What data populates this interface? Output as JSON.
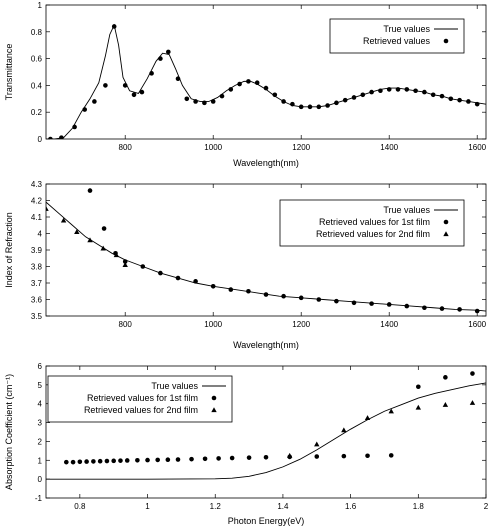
{
  "chart_data": [
    {
      "type": "line",
      "xlabel": "Wavelength(nm)",
      "ylabel": "Transmittance",
      "xlim": [
        620,
        1620
      ],
      "ylim": [
        0,
        1
      ],
      "xticks": [
        800,
        1000,
        1200,
        1400,
        1600
      ],
      "xtick_labels": [
        "800",
        "1000",
        "1200",
        "1400",
        "1600"
      ],
      "yticks": [
        0,
        0.2,
        0.4,
        0.6,
        0.8,
        1
      ],
      "ytick_labels": [
        "0",
        "0.2",
        "0.4",
        "0.6",
        "0.8",
        "1"
      ],
      "legend_position": "top-right",
      "series": [
        {
          "name": "True values",
          "style": "line",
          "x": [
            620,
            640,
            660,
            680,
            700,
            720,
            740,
            755,
            765,
            775,
            785,
            795,
            810,
            830,
            850,
            870,
            885,
            900,
            915,
            930,
            950,
            970,
            990,
            1010,
            1030,
            1050,
            1070,
            1085,
            1100,
            1120,
            1140,
            1160,
            1180,
            1200,
            1220,
            1240,
            1260,
            1280,
            1300,
            1320,
            1340,
            1360,
            1380,
            1400,
            1420,
            1440,
            1460,
            1480,
            1500,
            1520,
            1540,
            1560,
            1580,
            1600,
            1620
          ],
          "y": [
            0,
            0.0,
            0.01,
            0.08,
            0.2,
            0.3,
            0.42,
            0.62,
            0.78,
            0.85,
            0.7,
            0.46,
            0.36,
            0.34,
            0.45,
            0.58,
            0.64,
            0.63,
            0.52,
            0.4,
            0.3,
            0.28,
            0.28,
            0.31,
            0.36,
            0.4,
            0.43,
            0.43,
            0.41,
            0.37,
            0.32,
            0.28,
            0.25,
            0.24,
            0.24,
            0.24,
            0.25,
            0.27,
            0.29,
            0.31,
            0.33,
            0.35,
            0.37,
            0.38,
            0.38,
            0.37,
            0.36,
            0.35,
            0.33,
            0.32,
            0.3,
            0.29,
            0.28,
            0.27,
            0.26
          ]
        },
        {
          "name": "Retrieved values",
          "style": "circle",
          "x": [
            630,
            655,
            685,
            708,
            730,
            755,
            775,
            800,
            820,
            838,
            860,
            880,
            898,
            920,
            940,
            960,
            980,
            1000,
            1020,
            1040,
            1060,
            1080,
            1100,
            1120,
            1140,
            1160,
            1180,
            1200,
            1220,
            1240,
            1260,
            1280,
            1300,
            1320,
            1340,
            1360,
            1380,
            1400,
            1420,
            1440,
            1460,
            1480,
            1500,
            1520,
            1540,
            1560,
            1580,
            1600
          ],
          "y": [
            0.0,
            0.01,
            0.09,
            0.22,
            0.28,
            0.4,
            0.84,
            0.4,
            0.33,
            0.35,
            0.49,
            0.6,
            0.65,
            0.45,
            0.3,
            0.28,
            0.27,
            0.28,
            0.32,
            0.37,
            0.41,
            0.43,
            0.42,
            0.38,
            0.33,
            0.28,
            0.26,
            0.24,
            0.24,
            0.24,
            0.25,
            0.27,
            0.29,
            0.31,
            0.33,
            0.35,
            0.36,
            0.37,
            0.37,
            0.37,
            0.36,
            0.35,
            0.33,
            0.32,
            0.3,
            0.29,
            0.28,
            0.26
          ]
        }
      ]
    },
    {
      "type": "line",
      "xlabel": "Wavelength(nm)",
      "ylabel": "Index of Refraction",
      "xlim": [
        620,
        1620
      ],
      "ylim": [
        3.5,
        4.3
      ],
      "xticks": [
        800,
        1000,
        1200,
        1400,
        1600
      ],
      "xtick_labels": [
        "800",
        "1000",
        "1200",
        "1400",
        "1600"
      ],
      "yticks": [
        3.5,
        3.6,
        3.7,
        3.8,
        3.9,
        4,
        4.1,
        4.2,
        4.3
      ],
      "ytick_labels": [
        "3.5",
        "3.6",
        "3.7",
        "3.8",
        "3.9",
        "4",
        "4.1",
        "4.2",
        "4.3"
      ],
      "legend_position": "top-right",
      "series": [
        {
          "name": "True values",
          "style": "line",
          "x": [
            620,
            650,
            680,
            710,
            740,
            770,
            800,
            840,
            880,
            920,
            960,
            1000,
            1050,
            1100,
            1150,
            1200,
            1250,
            1300,
            1350,
            1400,
            1450,
            1500,
            1550,
            1600,
            1620
          ],
          "y": [
            4.19,
            4.12,
            4.05,
            3.98,
            3.93,
            3.88,
            3.84,
            3.8,
            3.76,
            3.73,
            3.7,
            3.68,
            3.66,
            3.64,
            3.62,
            3.61,
            3.6,
            3.59,
            3.58,
            3.57,
            3.56,
            3.55,
            3.54,
            3.535,
            3.53
          ]
        },
        {
          "name": "Retrieved values for 1st film",
          "style": "circle",
          "x": [
            720,
            752,
            778,
            800,
            840,
            880,
            920,
            960,
            1000,
            1040,
            1080,
            1120,
            1160,
            1200,
            1240,
            1280,
            1320,
            1360,
            1400,
            1440,
            1480,
            1520,
            1560,
            1600
          ],
          "y": [
            4.26,
            4.03,
            3.88,
            3.83,
            3.8,
            3.76,
            3.73,
            3.71,
            3.68,
            3.66,
            3.65,
            3.63,
            3.62,
            3.61,
            3.6,
            3.59,
            3.58,
            3.575,
            3.57,
            3.56,
            3.55,
            3.545,
            3.54,
            3.53
          ]
        },
        {
          "name": "Retrieved values for 2nd film",
          "style": "triangle",
          "x": [
            620,
            660,
            690,
            720,
            750,
            780,
            800
          ],
          "y": [
            4.15,
            4.08,
            4.01,
            3.96,
            3.91,
            3.87,
            3.81
          ]
        }
      ]
    },
    {
      "type": "line",
      "xlabel": "Photon Energy(eV)",
      "ylabel": "Absorption Coefficient (cm⁻¹)",
      "xlim": [
        0.7,
        2
      ],
      "ylim": [
        -1,
        6
      ],
      "xticks": [
        0.8,
        1,
        1.2,
        1.4,
        1.6,
        1.8,
        2
      ],
      "xtick_labels": [
        "0.8",
        "1",
        "1.2",
        "1.4",
        "1.6",
        "1.8",
        "2"
      ],
      "yticks": [
        -1,
        0,
        1,
        2,
        3,
        4,
        5,
        6
      ],
      "ytick_labels": [
        "-1",
        "0",
        "1",
        "2",
        "3",
        "4",
        "5",
        "6"
      ],
      "legend_position": "top-left",
      "series": [
        {
          "name": "True values",
          "style": "line",
          "x": [
            0.7,
            1.0,
            1.2,
            1.25,
            1.3,
            1.35,
            1.4,
            1.45,
            1.5,
            1.55,
            1.6,
            1.65,
            1.7,
            1.75,
            1.8,
            1.85,
            1.9,
            1.95,
            2.0
          ],
          "y": [
            0,
            0,
            0.02,
            0.05,
            0.15,
            0.35,
            0.65,
            1.05,
            1.55,
            2.1,
            2.65,
            3.15,
            3.6,
            3.95,
            4.3,
            4.55,
            4.75,
            4.95,
            5.1
          ]
        },
        {
          "name": "Retrieved values for 1st film",
          "style": "circle",
          "x": [
            0.76,
            0.78,
            0.8,
            0.82,
            0.84,
            0.86,
            0.88,
            0.9,
            0.92,
            0.94,
            0.97,
            1.0,
            1.03,
            1.06,
            1.09,
            1.13,
            1.17,
            1.21,
            1.25,
            1.3,
            1.35,
            1.42,
            1.5,
            1.58,
            1.65,
            1.72,
            1.8,
            1.88,
            1.96
          ],
          "y": [
            0.9,
            0.9,
            0.92,
            0.93,
            0.94,
            0.95,
            0.96,
            0.97,
            0.98,
            0.99,
            1.0,
            1.01,
            1.02,
            1.03,
            1.04,
            1.06,
            1.08,
            1.1,
            1.12,
            1.14,
            1.16,
            1.18,
            1.2,
            1.22,
            1.24,
            1.26,
            4.9,
            5.4,
            5.6
          ]
        },
        {
          "name": "Retrieved values for 2nd film",
          "style": "triangle",
          "x": [
            1.42,
            1.5,
            1.58,
            1.65,
            1.72,
            1.8,
            1.88,
            1.96
          ],
          "y": [
            1.25,
            1.85,
            2.6,
            3.25,
            3.6,
            3.8,
            3.95,
            4.05
          ]
        }
      ]
    }
  ]
}
